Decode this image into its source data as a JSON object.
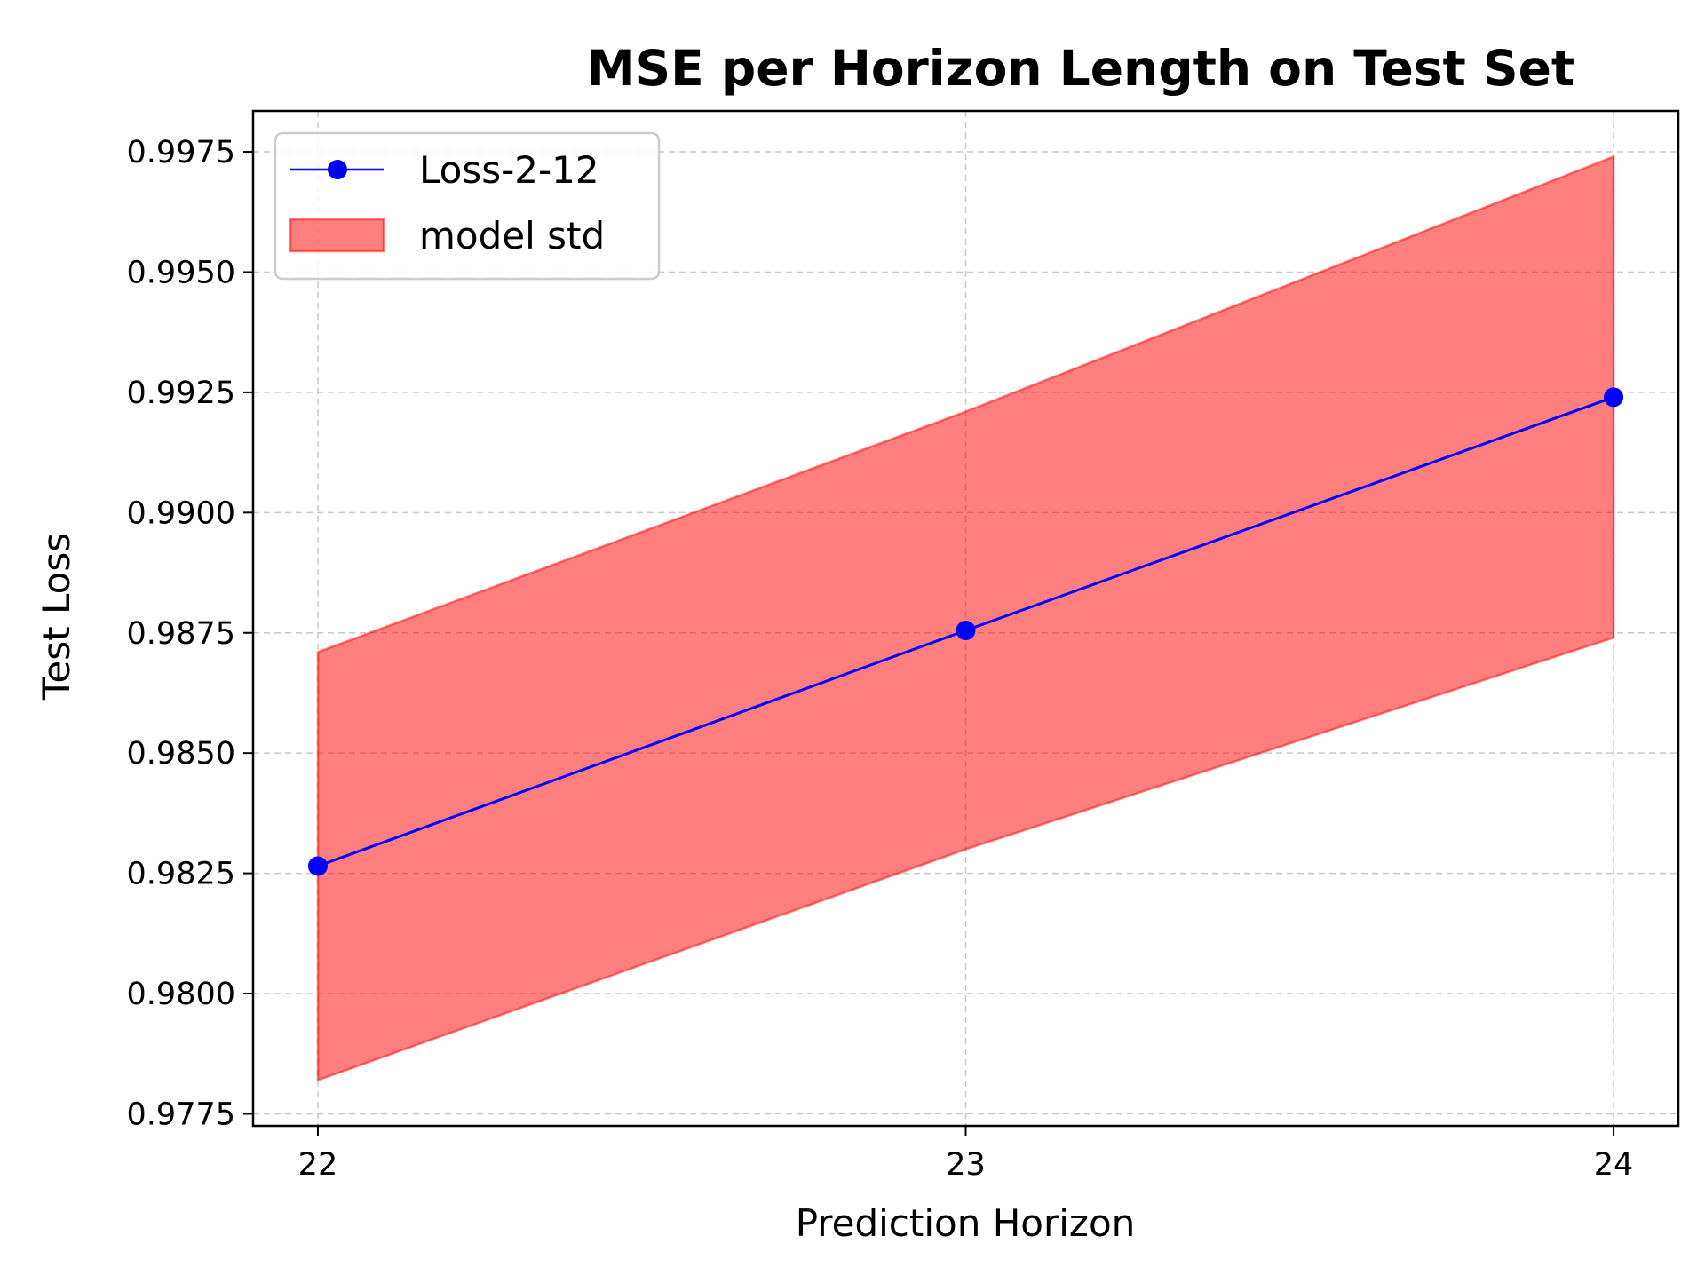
{
  "chart_data": {
    "type": "line",
    "title": "MSE per Horizon Length on Test Set",
    "xlabel": "Prediction Horizon",
    "ylabel": "Test Loss",
    "x": [
      22,
      23,
      24
    ],
    "xlim": [
      21.9,
      24.1
    ],
    "ylim": [
      0.97725,
      0.99835
    ],
    "xticks": [
      "22",
      "23",
      "24"
    ],
    "yticks": [
      "0.9775",
      "0.9800",
      "0.9825",
      "0.9850",
      "0.9875",
      "0.9900",
      "0.9925",
      "0.9950",
      "0.9975"
    ],
    "grid": true,
    "legend_position": "top-left",
    "series": [
      {
        "name": "Loss-2-12",
        "kind": "line-with-markers",
        "color": "#0000ff",
        "values": [
          0.98265,
          0.98755,
          0.9924
        ]
      }
    ],
    "band": {
      "name": "model std",
      "color": "#ff0000",
      "upper": [
        0.9871,
        0.9921,
        0.9974
      ],
      "lower": [
        0.9782,
        0.983,
        0.9874
      ]
    }
  }
}
